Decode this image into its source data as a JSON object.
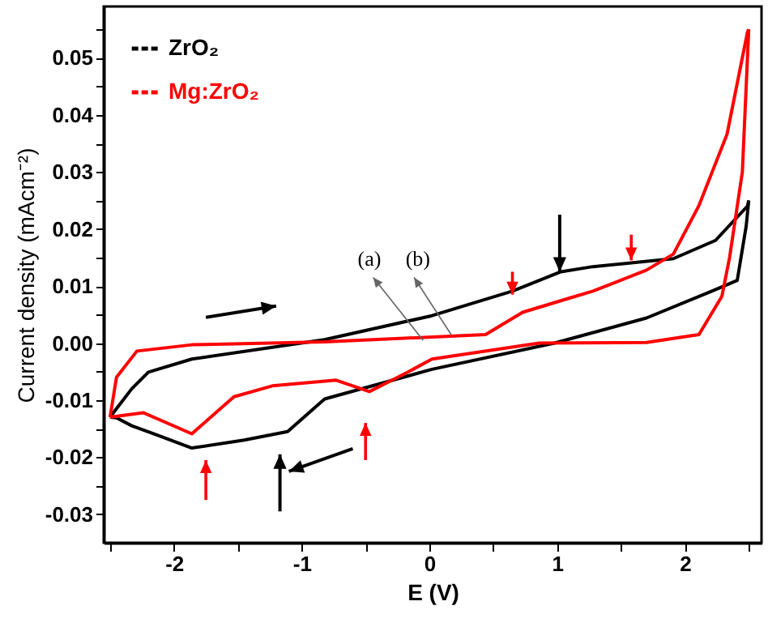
{
  "chart_data": {
    "type": "line",
    "xlabel": "E (V)",
    "ylabel": "Current density (mAcm⁻²)",
    "xlim": [
      -2.55,
      2.6
    ],
    "ylim": [
      -0.035,
      0.059
    ],
    "xticks": [
      {
        "value": -2.5,
        "label": null
      },
      -2,
      {
        "value": -1.5,
        "label": null
      },
      -1,
      {
        "value": -0.5,
        "label": null
      },
      0,
      {
        "value": 0.5,
        "label": null
      },
      1,
      {
        "value": 1.5,
        "label": null
      },
      2,
      {
        "value": 2.5,
        "label": null
      }
    ],
    "yticks": [
      -0.03,
      {
        "value": -0.025,
        "label": null
      },
      -0.02,
      {
        "value": -0.015,
        "label": null
      },
      -0.01,
      {
        "value": -0.005,
        "label": null
      },
      {
        "value": 0,
        "label": "0.00"
      },
      {
        "value": 0.005,
        "label": null
      },
      0.01,
      {
        "value": 0.015,
        "label": null
      },
      0.02,
      {
        "value": 0.025,
        "label": null
      },
      0.03,
      {
        "value": 0.035,
        "label": null
      },
      0.04,
      {
        "value": 0.045,
        "label": null
      },
      0.05,
      {
        "value": 0.055,
        "label": null
      }
    ],
    "grid": false,
    "legend": "top left",
    "line_style": "solid",
    "annotations": [
      "(a)",
      "(b)"
    ],
    "series": [
      {
        "name": "ZrO₂",
        "color": "#000000",
        "x": [
          -2.5,
          -2.45,
          -2.33,
          -2.2,
          -1.86,
          -0.82,
          0.02,
          0.65,
          1.03,
          1.28,
          1.91,
          2.24,
          2.49,
          2.5
        ],
        "values": [
          -0.013,
          -0.0115,
          -0.008,
          -0.0051,
          -0.0028,
          0.0006,
          0.0048,
          0.0091,
          0.0125,
          0.0134,
          0.0148,
          0.018,
          0.024,
          0.025
        ]
      },
      {
        "color": "#000000",
        "x": [
          -2.5,
          -2.45,
          -2.33,
          -2.16,
          -1.86,
          -1.45,
          -1.11,
          -0.82,
          0.02,
          0.98,
          1.7,
          2.2,
          2.41,
          2.48,
          2.5
        ],
        "values": [
          -0.013,
          -0.0131,
          -0.0145,
          -0.0159,
          -0.0184,
          -0.017,
          -0.0155,
          -0.0098,
          -0.0046,
          0.0,
          0.0044,
          0.009,
          0.011,
          0.0205,
          0.025
        ]
      },
      {
        "name": "Mg:ZrO₂",
        "color": "#ff0000",
        "x": [
          -2.5,
          -2.45,
          -2.29,
          -1.86,
          -0.82,
          0.44,
          0.73,
          1.07,
          1.28,
          1.7,
          1.91,
          2.11,
          2.33,
          2.49,
          2.5
        ],
        "values": [
          -0.013,
          -0.006,
          -0.0014,
          -0.0003,
          0.0002,
          0.0015,
          0.0054,
          0.0077,
          0.0091,
          0.0128,
          0.0156,
          0.0241,
          0.0366,
          0.0545,
          0.055
        ]
      },
      {
        "color": "#ff0000",
        "x": [
          -2.5,
          -2.24,
          -1.86,
          -1.53,
          -1.23,
          -0.73,
          -0.47,
          -0.17,
          0.02,
          0.86,
          1.7,
          2.11,
          2.29,
          2.35,
          2.45,
          2.5
        ],
        "values": [
          -0.013,
          -0.0122,
          -0.0159,
          -0.0094,
          -0.0075,
          -0.0065,
          -0.0085,
          -0.0051,
          -0.0028,
          0.0,
          0.0001,
          0.0015,
          0.0082,
          0.015,
          0.03,
          0.055
        ]
      }
    ]
  }
}
